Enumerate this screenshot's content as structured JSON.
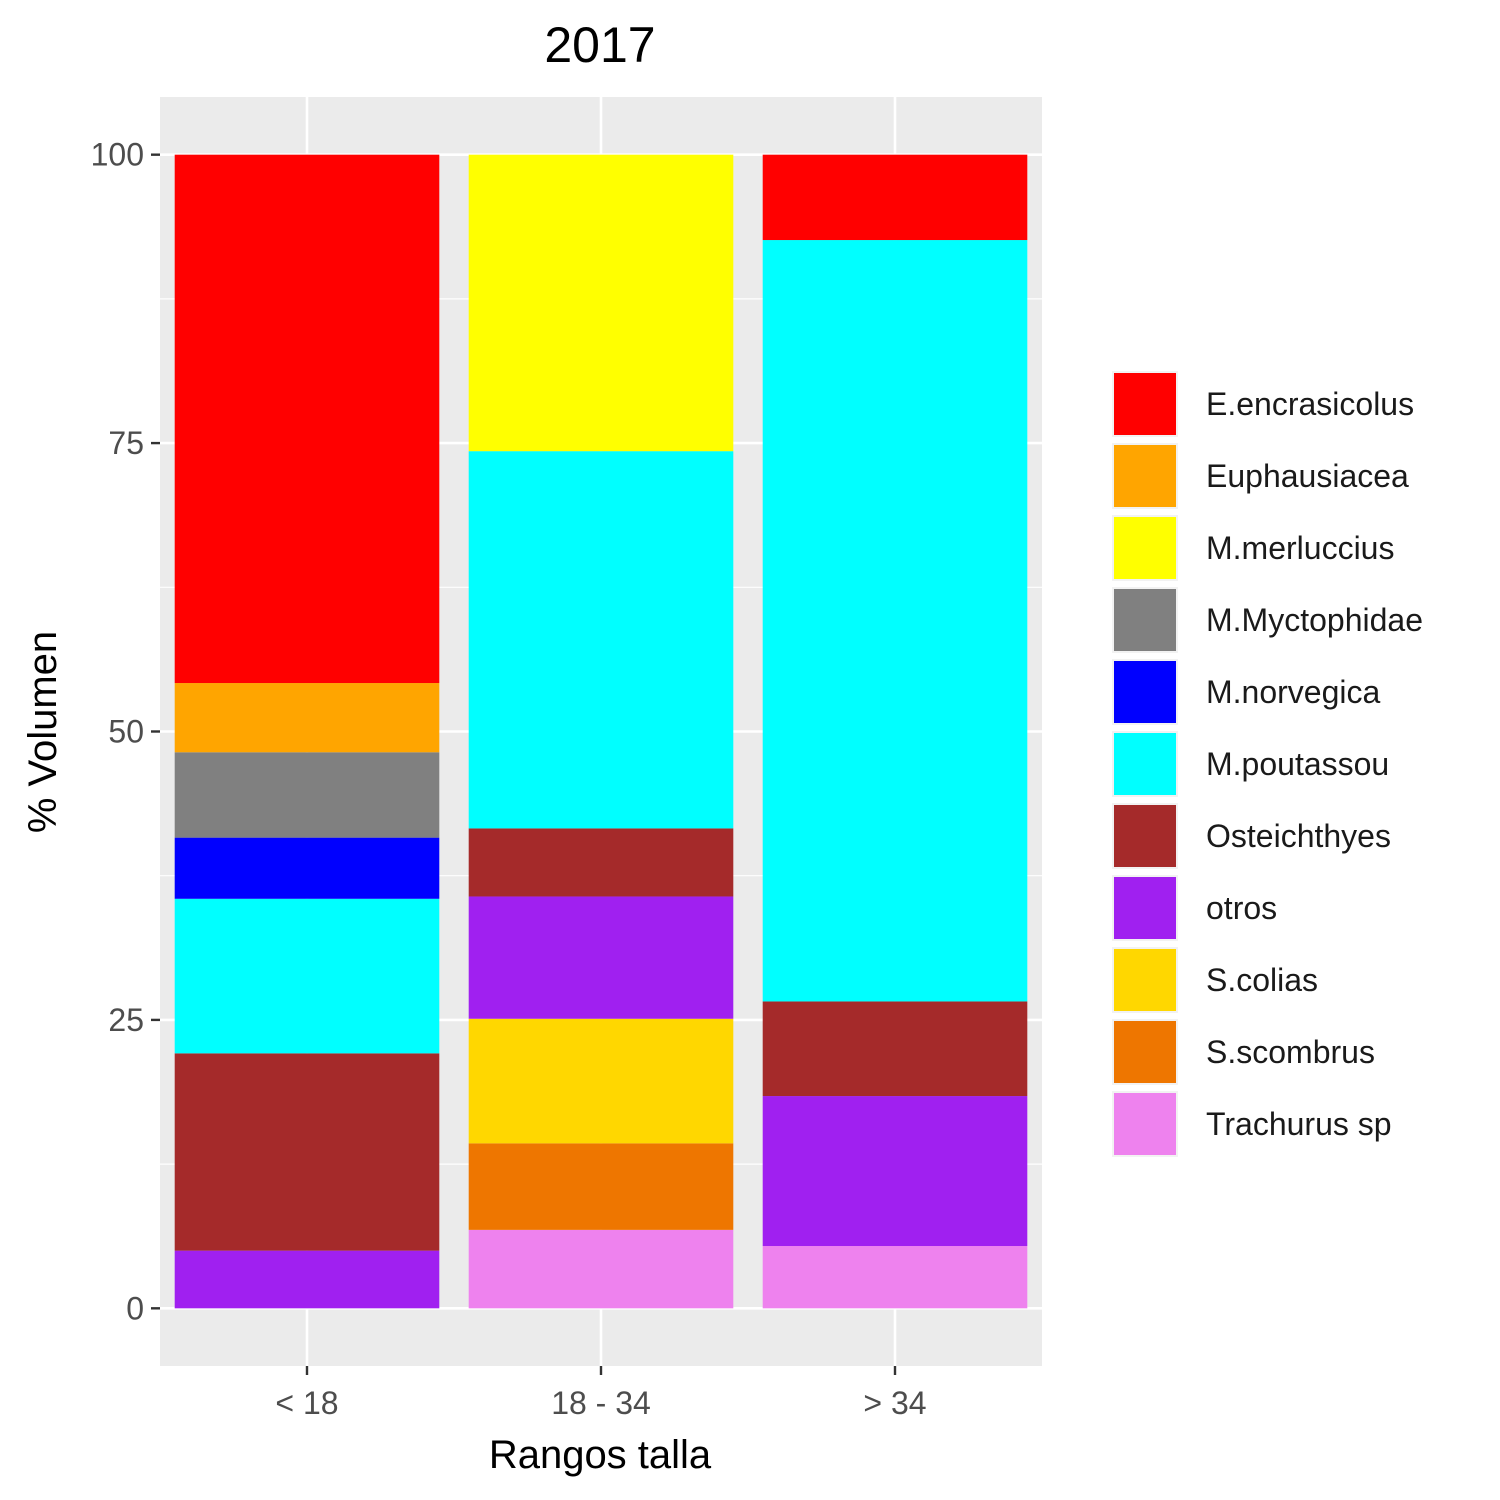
{
  "chart_data": {
    "type": "bar",
    "stacked": true,
    "title": "2017",
    "xlabel": "Rangos talla",
    "ylabel": "% Volumen",
    "categories": [
      "< 18",
      "18 - 34",
      "> 34"
    ],
    "ylim": [
      -5,
      105
    ],
    "yticks": [
      0,
      25,
      50,
      75,
      100
    ],
    "grid": true,
    "legend_position": "right",
    "series": [
      {
        "name": "E.encrasicolus",
        "color": "#FF0000",
        "values": [
          45.8,
          0,
          7.4
        ]
      },
      {
        "name": "Euphausiacea",
        "color": "#FFA500",
        "values": [
          6.0,
          0,
          0
        ]
      },
      {
        "name": "M.merluccius",
        "color": "#FFFF00",
        "values": [
          0,
          25.7,
          0
        ]
      },
      {
        "name": "M.Myctophidae",
        "color": "#808080",
        "values": [
          7.4,
          0,
          0
        ]
      },
      {
        "name": "M.norvegica",
        "color": "#0000FF",
        "values": [
          5.3,
          0,
          0
        ]
      },
      {
        "name": "M.poutassou",
        "color": "#00FFFF",
        "values": [
          13.4,
          32.7,
          66.0
        ]
      },
      {
        "name": "Osteichthyes",
        "color": "#A52A2A",
        "values": [
          17.1,
          5.9,
          8.2
        ]
      },
      {
        "name": "otros",
        "color": "#A020F0",
        "values": [
          5.0,
          10.6,
          13.0
        ]
      },
      {
        "name": "S.colias",
        "color": "#FFD700",
        "values": [
          0,
          10.8,
          0
        ]
      },
      {
        "name": "S.scombrus",
        "color": "#EE7600",
        "values": [
          0,
          7.5,
          0
        ]
      },
      {
        "name": "Trachurus sp",
        "color": "#EE82EE",
        "values": [
          0,
          6.8,
          5.4
        ]
      }
    ]
  }
}
